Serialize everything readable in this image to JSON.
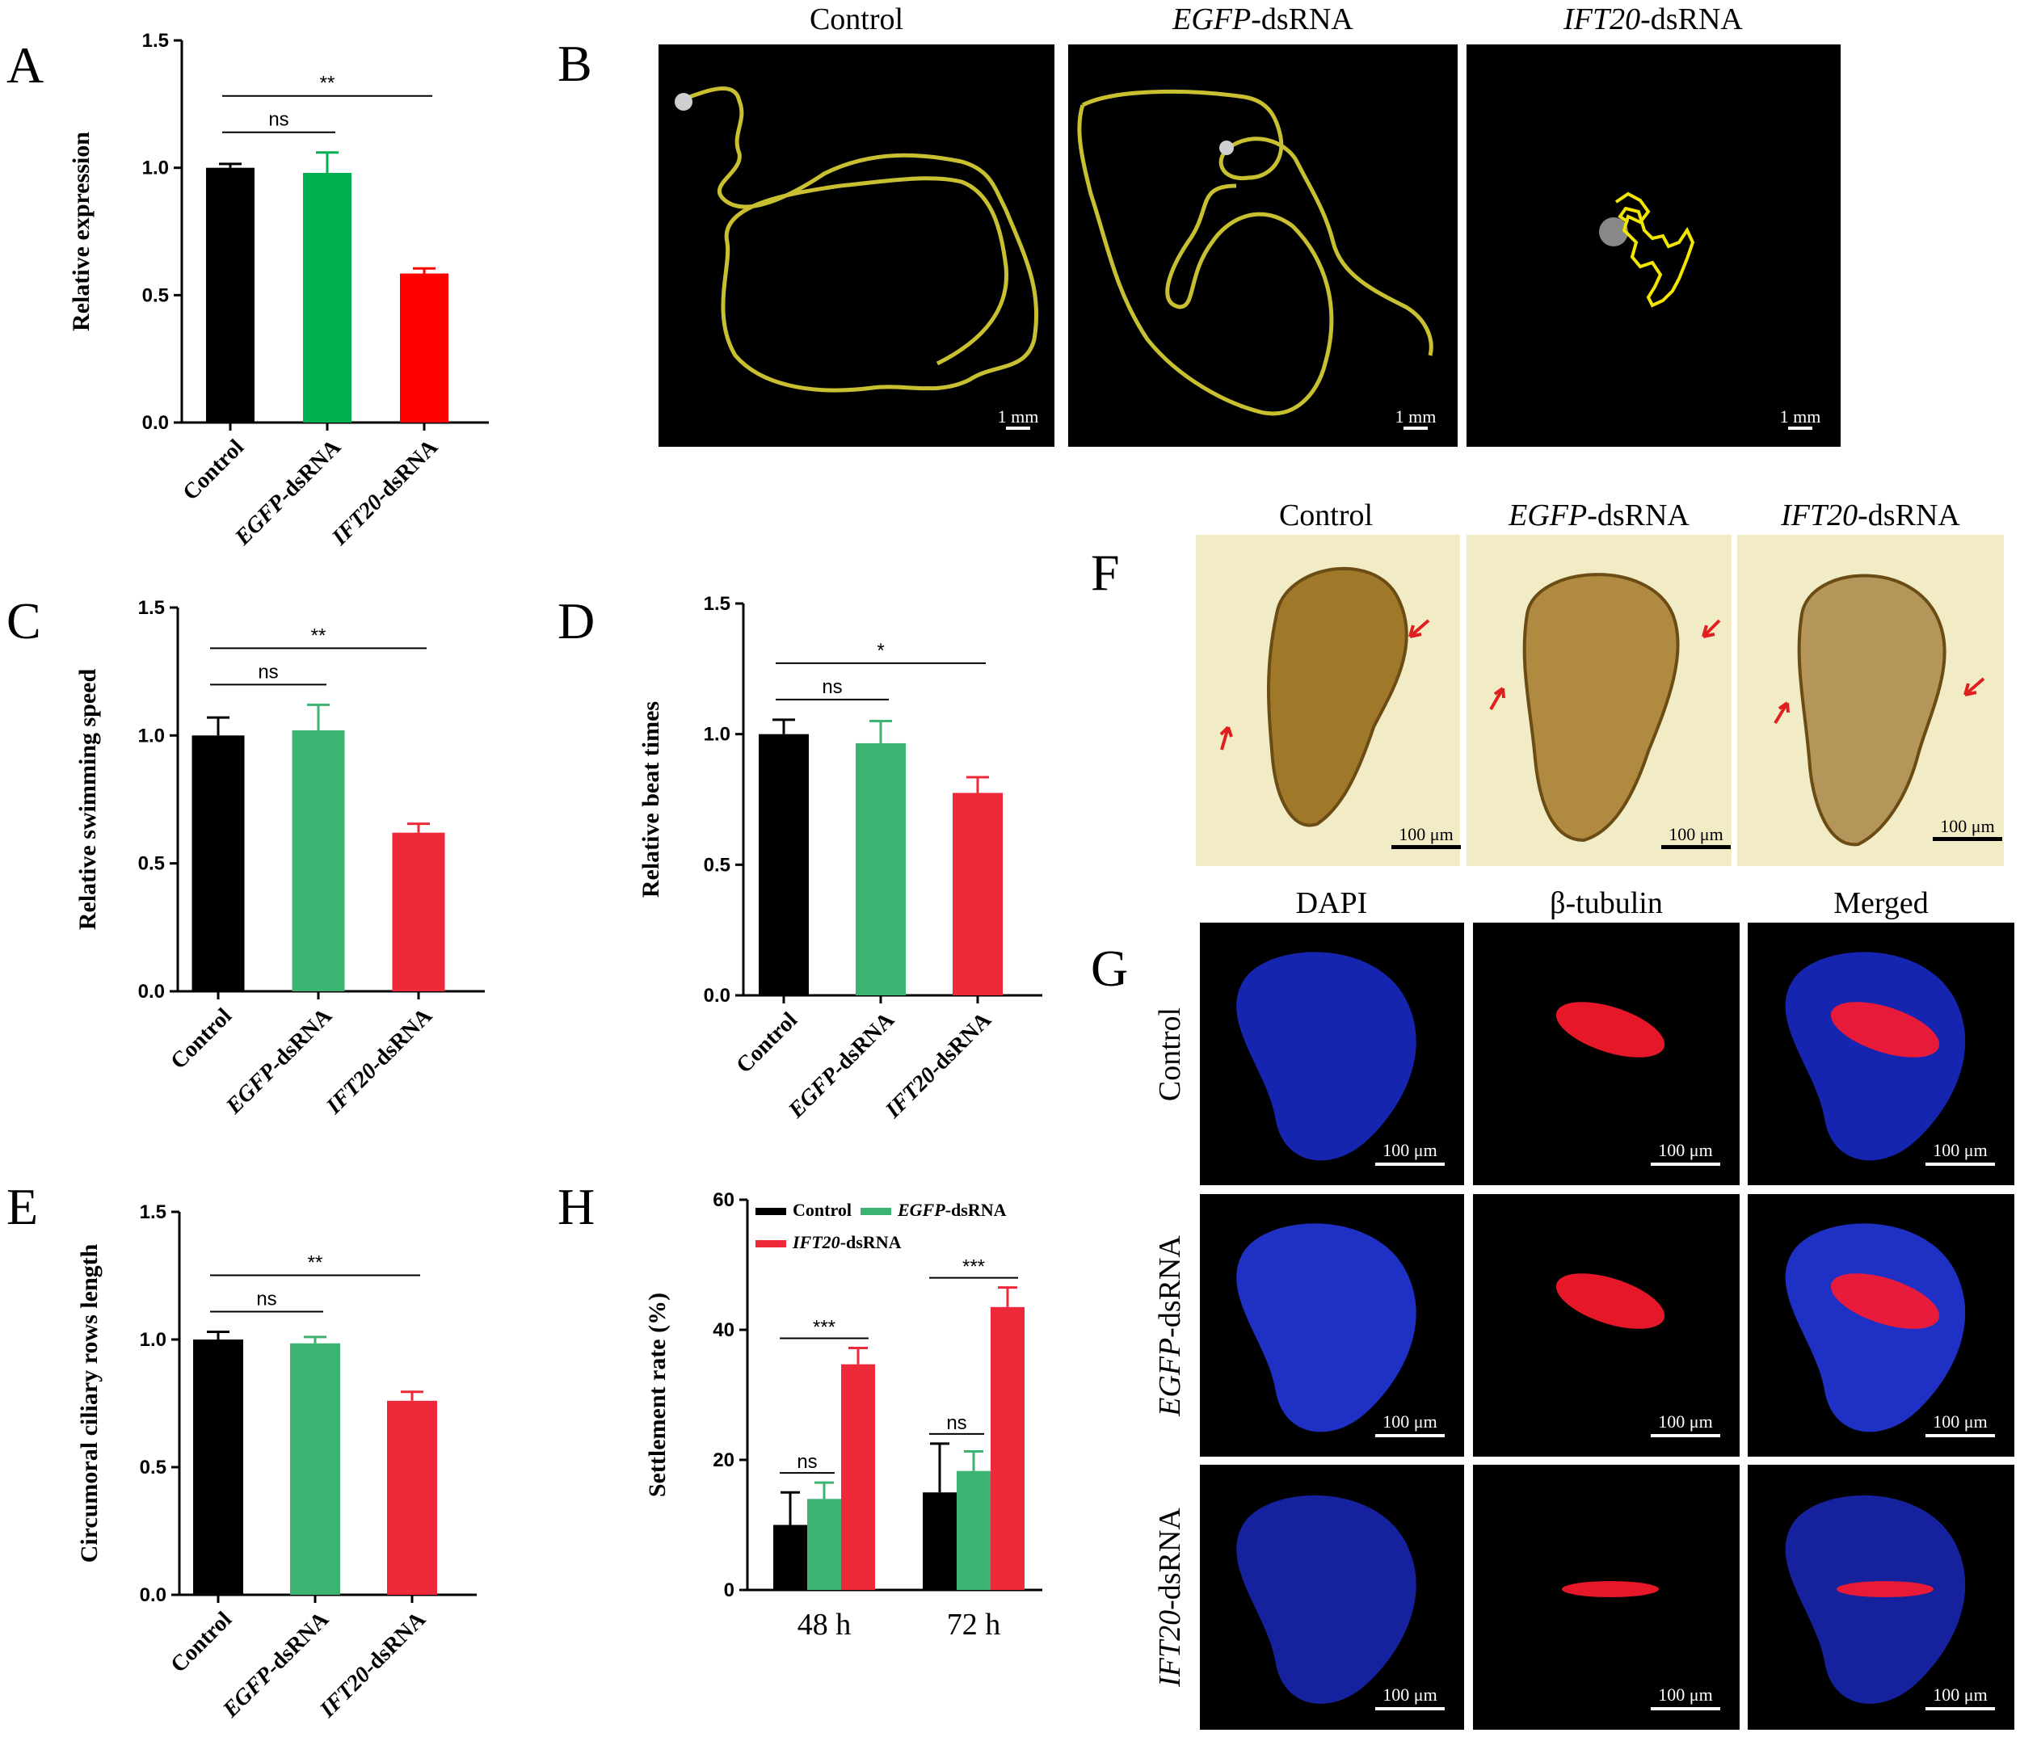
{
  "panel_letters": {
    "A": "A",
    "B": "B",
    "C": "C",
    "D": "D",
    "E": "E",
    "F": "F",
    "G": "G",
    "H": "H"
  },
  "colors": {
    "control": "#000000",
    "egfp_A": "#00b050",
    "egfp": "#3cb371",
    "ift20_A": "#ff0000",
    "ift20": "#ee2a3a",
    "track": "#c8c030"
  },
  "chart_data": [
    {
      "id": "A",
      "type": "bar",
      "ylabel": "Relative expression",
      "ylim": [
        0,
        1.5
      ],
      "yticks": [
        "0.0",
        "0.5",
        "1.0",
        "1.5"
      ],
      "categories": [
        {
          "prefix": "",
          "name": "Control",
          "suffix": ""
        },
        {
          "prefix": "EGFP",
          "name": "",
          "suffix": "-dsRNA"
        },
        {
          "prefix": "IFT20",
          "name": "",
          "suffix": "-dsRNA"
        }
      ],
      "values": [
        1.0,
        0.98,
        0.585
      ],
      "errors": [
        0.015,
        0.08,
        0.02
      ],
      "significance": [
        {
          "label": "ns",
          "from": 0,
          "to": 1
        },
        {
          "label": "**",
          "from": 0,
          "to": 2
        }
      ]
    },
    {
      "id": "C",
      "type": "bar",
      "ylabel": "Relative swimming speed",
      "ylim": [
        0,
        1.5
      ],
      "yticks": [
        "0.0",
        "0.5",
        "1.0",
        "1.5"
      ],
      "categories": [
        {
          "prefix": "",
          "name": "Control",
          "suffix": ""
        },
        {
          "prefix": "EGFP",
          "name": "",
          "suffix": "-dsRNA"
        },
        {
          "prefix": "IFT20",
          "name": "",
          "suffix": "-dsRNA"
        }
      ],
      "values": [
        1.0,
        1.02,
        0.62
      ],
      "errors": [
        0.07,
        0.1,
        0.035
      ],
      "significance": [
        {
          "label": "ns",
          "from": 0,
          "to": 1
        },
        {
          "label": "**",
          "from": 0,
          "to": 2
        }
      ]
    },
    {
      "id": "D",
      "type": "bar",
      "ylabel": "Relative beat times",
      "ylim": [
        0,
        1.5
      ],
      "yticks": [
        "0.0",
        "0.5",
        "1.0",
        "1.5"
      ],
      "categories": [
        {
          "prefix": "",
          "name": "Control",
          "suffix": ""
        },
        {
          "prefix": "EGFP",
          "name": "",
          "suffix": "-dsRNA"
        },
        {
          "prefix": "IFT20",
          "name": "",
          "suffix": "-dsRNA"
        }
      ],
      "values": [
        1.0,
        0.965,
        0.775
      ],
      "errors": [
        0.055,
        0.085,
        0.06
      ],
      "significance": [
        {
          "label": "ns",
          "from": 0,
          "to": 1
        },
        {
          "label": "*",
          "from": 0,
          "to": 2
        }
      ]
    },
    {
      "id": "E",
      "type": "bar",
      "ylabel": "Circumoral ciliary rows length",
      "ylim": [
        0,
        1.5
      ],
      "yticks": [
        "0.0",
        "0.5",
        "1.0",
        "1.5"
      ],
      "categories": [
        {
          "prefix": "",
          "name": "Control",
          "suffix": ""
        },
        {
          "prefix": "EGFP",
          "name": "",
          "suffix": "-dsRNA"
        },
        {
          "prefix": "IFT20",
          "name": "",
          "suffix": "-dsRNA"
        }
      ],
      "values": [
        1.0,
        0.985,
        0.76
      ],
      "errors": [
        0.03,
        0.025,
        0.035
      ],
      "significance": [
        {
          "label": "ns",
          "from": 0,
          "to": 1
        },
        {
          "label": "**",
          "from": 0,
          "to": 2
        }
      ]
    },
    {
      "id": "H",
      "type": "bar",
      "ylabel": "Settlement rate (%)",
      "ylim": [
        0,
        60
      ],
      "yticks": [
        "0",
        "20",
        "40",
        "60"
      ],
      "categories": [
        "48 h",
        "72 h"
      ],
      "series": [
        {
          "name": "Control",
          "prefix": "",
          "suffix": "",
          "values": [
            10,
            15
          ],
          "errors": [
            5,
            7.5
          ]
        },
        {
          "name": "",
          "prefix": "EGFP",
          "suffix": "-dsRNA",
          "values": [
            14,
            18.3
          ],
          "errors": [
            2.5,
            3
          ]
        },
        {
          "name": "",
          "prefix": "IFT20",
          "suffix": "-dsRNA",
          "values": [
            34.7,
            43.5
          ],
          "errors": [
            2.5,
            3
          ]
        }
      ],
      "significance": [
        {
          "label": "ns",
          "group": 0,
          "from": 0,
          "to": 1
        },
        {
          "label": "***",
          "group": 0,
          "from": 0,
          "to": 2
        },
        {
          "label": "ns",
          "group": 1,
          "from": 0,
          "to": 1
        },
        {
          "label": "***",
          "group": 1,
          "from": 0,
          "to": 2
        }
      ]
    }
  ],
  "panel_B": {
    "titles": [
      {
        "prefix": "",
        "text": "Control",
        "suffix": ""
      },
      {
        "prefix": "EGFP",
        "text": "",
        "suffix": "-dsRNA"
      },
      {
        "prefix": "IFT20",
        "text": "",
        "suffix": "-dsRNA"
      }
    ],
    "scale_label": "1 mm"
  },
  "panel_F": {
    "titles": [
      {
        "prefix": "",
        "text": "Control",
        "suffix": ""
      },
      {
        "prefix": "EGFP",
        "text": "",
        "suffix": "-dsRNA"
      },
      {
        "prefix": "IFT20",
        "text": "",
        "suffix": "-dsRNA"
      }
    ],
    "scale_label": "100 μm"
  },
  "panel_G": {
    "column_titles": [
      "DAPI",
      "β-tubulin",
      "Merged"
    ],
    "row_titles": [
      {
        "prefix": "",
        "text": "Control",
        "suffix": ""
      },
      {
        "prefix": "EGFP",
        "text": "",
        "suffix": "-dsRNA"
      },
      {
        "prefix": "IFT20",
        "text": "",
        "suffix": "-dsRNA"
      }
    ],
    "scale_label": "100 μm"
  }
}
